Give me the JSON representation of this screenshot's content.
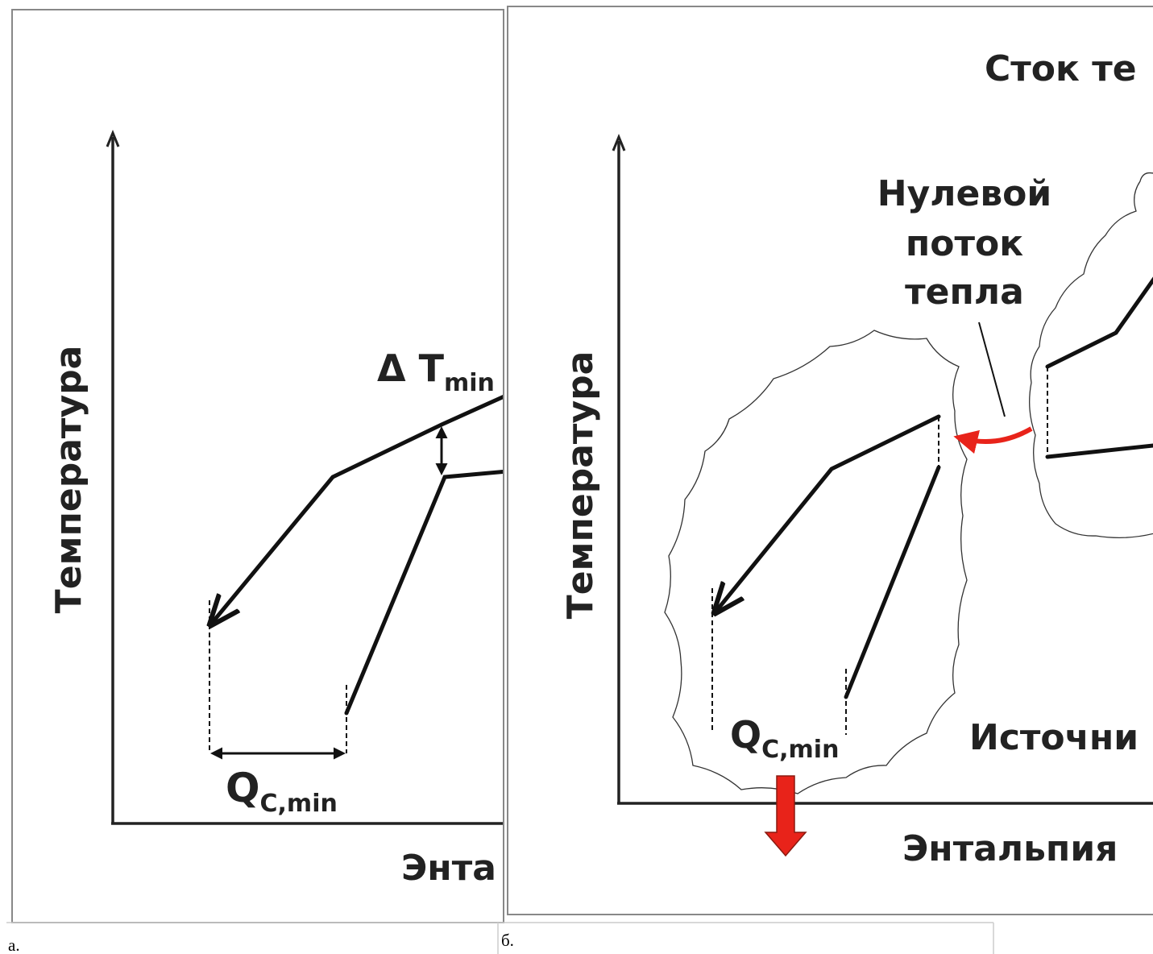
{
  "panel_a": {
    "y_axis_label": "Температура",
    "x_axis_label": "Энта",
    "delta_t": {
      "symbol": "Δ T",
      "subscript": "min"
    },
    "q_label": {
      "symbol": "Q",
      "subscript": "C,min"
    },
    "caption": "а."
  },
  "panel_b": {
    "sink_label": "Сток те",
    "zero_flow_label": [
      "Нулевой",
      "поток",
      "тепла"
    ],
    "y_axis_label": "Температура",
    "x_axis_label": "Энтальпия",
    "source_label": "Источни",
    "q_label": {
      "symbol": "Q",
      "subscript": "C,min"
    },
    "caption": "б."
  }
}
